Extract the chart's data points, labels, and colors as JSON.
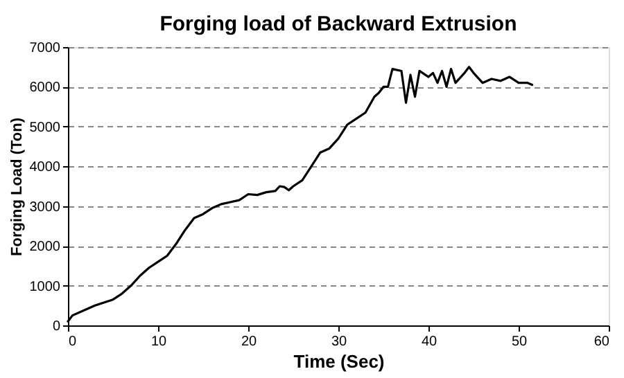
{
  "chart_data": {
    "type": "line",
    "title": "Forging load of Backward Extrusion",
    "xlabel": "Time (Sec)",
    "ylabel": "Forging Load (Ton)",
    "x": [
      0,
      0.5,
      2,
      3,
      5,
      6,
      7,
      8,
      9,
      10,
      11,
      12,
      13,
      14,
      15,
      16,
      17,
      18,
      19,
      20,
      21,
      22,
      23,
      23.5,
      24,
      24.5,
      25,
      26,
      27,
      28,
      29,
      30,
      31,
      32,
      33,
      34,
      34.5,
      35,
      35.5,
      36,
      37,
      37.5,
      38,
      38.5,
      39,
      40,
      40.5,
      41,
      41.5,
      42,
      42.5,
      43,
      44,
      44.5,
      45,
      46,
      47,
      48,
      49,
      50,
      51,
      51.5
    ],
    "series": [
      {
        "color": "#000000",
        "values": [
          100,
          250,
          400,
          500,
          650,
          800,
          1000,
          1250,
          1450,
          1600,
          1750,
          2050,
          2400,
          2700,
          2800,
          2950,
          3050,
          3100,
          3150,
          3300,
          3280,
          3350,
          3380,
          3500,
          3480,
          3400,
          3500,
          3650,
          4000,
          4350,
          4450,
          4700,
          5050,
          5200,
          5350,
          5750,
          5850,
          6000,
          6000,
          6450,
          6400,
          5600,
          6300,
          5750,
          6400,
          6250,
          6350,
          6100,
          6400,
          6000,
          6450,
          6100,
          6350,
          6500,
          6350,
          6100,
          6200,
          6150,
          6250,
          6100,
          6100,
          6050
        ]
      }
    ],
    "xlim": [
      0,
      60
    ],
    "xticks": [
      0,
      10,
      20,
      30,
      40,
      50,
      60
    ],
    "ylim": [
      0,
      7000
    ],
    "yticks": [
      0,
      1000,
      2000,
      3000,
      4000,
      5000,
      6000,
      7000
    ],
    "grid": "y",
    "marker": "none",
    "line_style": "solid"
  }
}
